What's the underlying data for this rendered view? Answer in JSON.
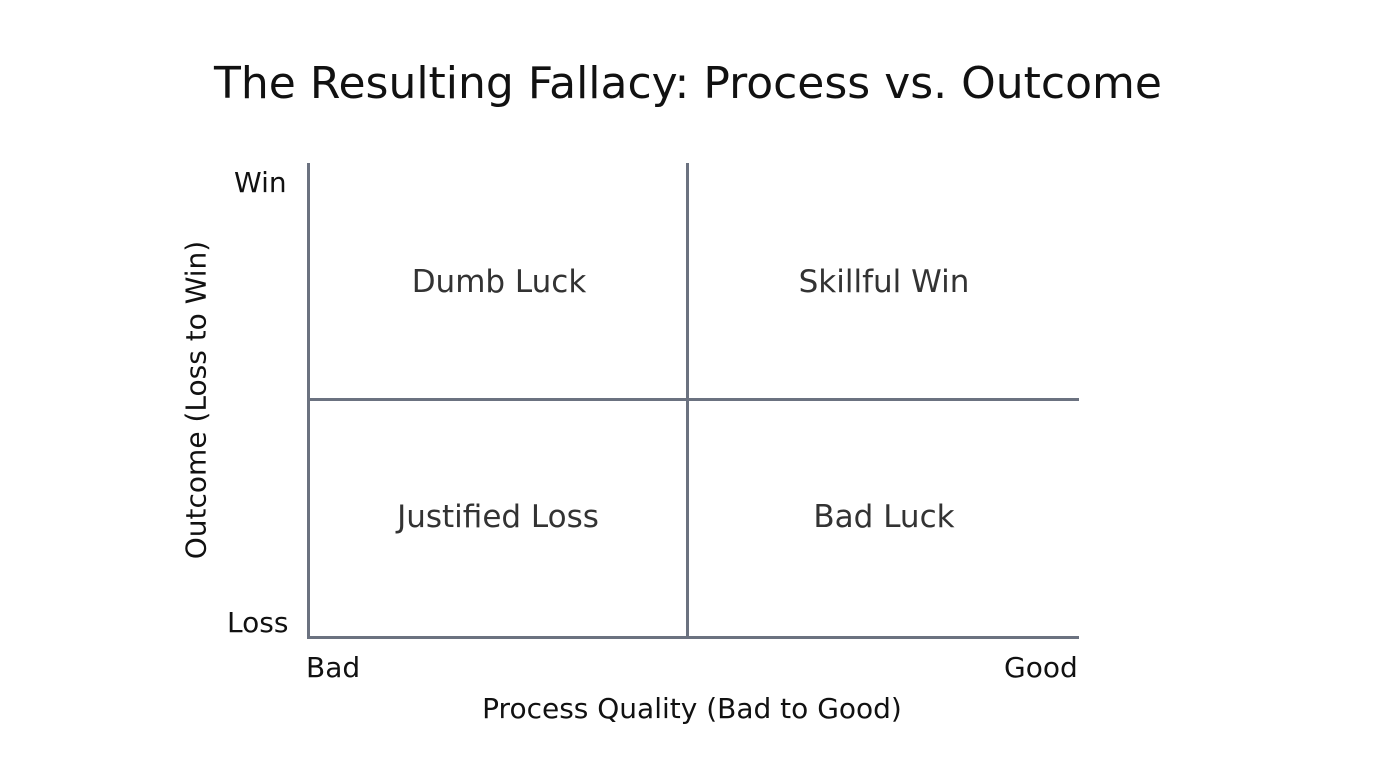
{
  "title": "The Resulting Fallacy: Process vs. Outcome",
  "axes": {
    "x_label": "Process Quality (Bad to Good)",
    "x_low": "Bad",
    "x_high": "Good",
    "y_label": "Outcome (Loss to Win)",
    "y_low": "Loss",
    "y_high": "Win"
  },
  "quadrants": {
    "top_left": "Dumb Luck",
    "top_right": "Skillful Win",
    "bottom_left": "Justified Loss",
    "bottom_right": "Bad Luck"
  },
  "colors": {
    "line": "#6b7280",
    "text": "#222222"
  }
}
